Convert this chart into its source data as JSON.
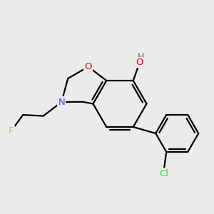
{
  "bg_color": "#ebebeb",
  "atom_colors": {
    "O": "#e8000d",
    "N": "#3050f8",
    "F": "#90e050",
    "Cl": "#1ff01f",
    "C": "#000000",
    "H": "#606060"
  },
  "bond_color": "#000000",
  "bond_width": 1.6
}
